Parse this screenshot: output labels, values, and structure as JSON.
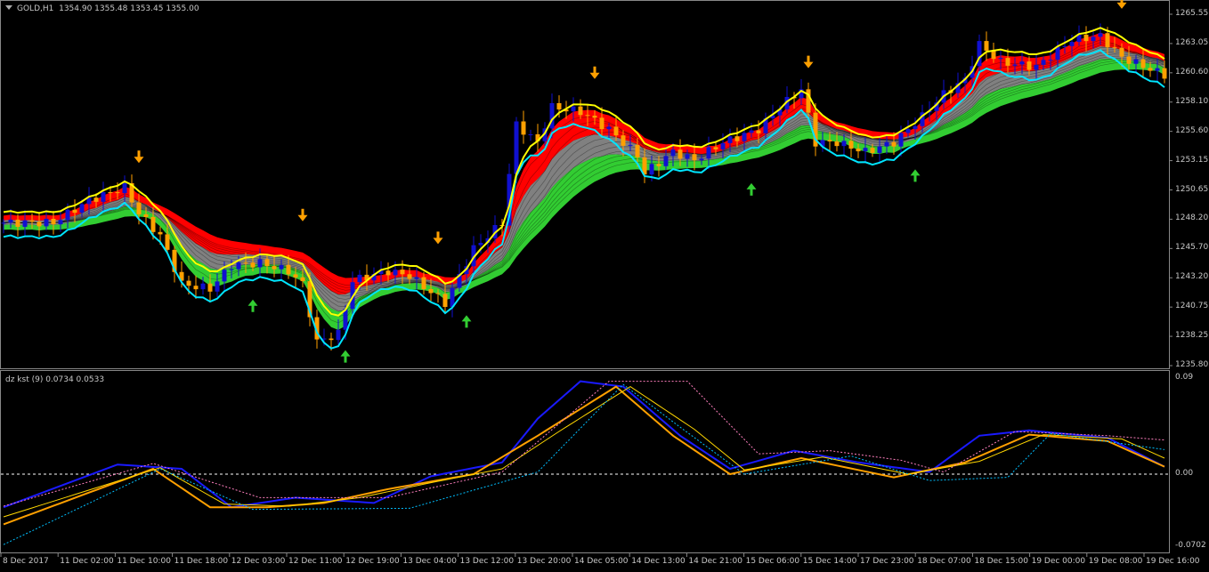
{
  "window": {
    "symbol": "GOLD,H1",
    "ohlc": "1354.90 1355.48 1353.45 1355.00"
  },
  "indicator": {
    "label": "dz kst (9) 0.0734 0.0533"
  },
  "chart_data": [
    {
      "type": "candlestick",
      "title": "GOLD,H1",
      "y_ticks": [
        "1265.55",
        "1263.05",
        "1260.60",
        "1258.10",
        "1255.60",
        "1253.15",
        "1250.65",
        "1248.20",
        "1245.70",
        "1243.20",
        "1240.75",
        "1238.25",
        "1235.80"
      ],
      "ylim": [
        1235.8,
        1265.55
      ],
      "x_ticks": [
        "8 Dec 2017",
        "11 Dec 02:00",
        "11 Dec 10:00",
        "11 Dec 18:00",
        "12 Dec 03:00",
        "12 Dec 11:00",
        "12 Dec 19:00",
        "13 Dec 04:00",
        "13 Dec 12:00",
        "13 Dec 20:00",
        "14 Dec 05:00",
        "14 Dec 13:00",
        "14 Dec 21:00",
        "15 Dec 06:00",
        "15 Dec 14:00",
        "17 Dec 23:00",
        "18 Dec 07:00",
        "18 Dec 15:00",
        "19 Dec 00:00",
        "19 Dec 08:00",
        "19 Dec 16:00"
      ],
      "close_keypoints_bar_price": [
        [
          0,
          1247.9
        ],
        [
          7,
          1247.9
        ],
        [
          12,
          1249.8
        ],
        [
          17,
          1250.9
        ],
        [
          19,
          1248.7
        ],
        [
          22,
          1246.8
        ],
        [
          25,
          1242.7
        ],
        [
          29,
          1242.3
        ],
        [
          32,
          1244.3
        ],
        [
          36,
          1244.5
        ],
        [
          40,
          1243.8
        ],
        [
          42,
          1242.7
        ],
        [
          44,
          1237.8
        ],
        [
          47,
          1238.5
        ],
        [
          49,
          1243.0
        ],
        [
          54,
          1243.8
        ],
        [
          57,
          1243.4
        ],
        [
          62,
          1241.1
        ],
        [
          66,
          1245.7
        ],
        [
          70,
          1247.9
        ],
        [
          72,
          1256.2
        ],
        [
          75,
          1254.7
        ],
        [
          77,
          1257.7
        ],
        [
          81,
          1257.3
        ],
        [
          85,
          1255.8
        ],
        [
          89,
          1253.6
        ],
        [
          90,
          1252.1
        ],
        [
          94,
          1253.9
        ],
        [
          97,
          1253.2
        ],
        [
          101,
          1254.7
        ],
        [
          106,
          1255.8
        ],
        [
          109,
          1257.7
        ],
        [
          112,
          1259.2
        ],
        [
          114,
          1254.7
        ],
        [
          117,
          1254.7
        ],
        [
          121,
          1253.9
        ],
        [
          125,
          1254.7
        ],
        [
          129,
          1256.9
        ],
        [
          132,
          1258.8
        ],
        [
          135,
          1260.0
        ],
        [
          137,
          1263.0
        ],
        [
          140,
          1261.5
        ],
        [
          145,
          1261.1
        ],
        [
          150,
          1263.4
        ],
        [
          154,
          1263.7
        ],
        [
          157,
          1261.9
        ],
        [
          163,
          1260.4
        ]
      ],
      "sell_arrows_bar": [
        19,
        42,
        61,
        83,
        113,
        157
      ],
      "buy_arrows_bar": [
        35,
        48,
        65,
        105,
        128
      ],
      "colors": {
        "bull": "#1010d0",
        "bear": "#ffa000",
        "ribbon_top": "#ff0000",
        "ribbon_mid": "#808080",
        "ribbon_bottom": "#32cd32",
        "fast_line": "#00e5ff",
        "slow_line": "#ffff00",
        "sell_arrow": "#ffa000",
        "buy_arrow": "#32cd32"
      }
    },
    {
      "type": "line",
      "title": "dz kst (9) 0.0734 0.0533",
      "ylim": [
        -0.0702,
        0.09
      ],
      "y_ticks": [
        "0.09",
        "0.00",
        "-0.0702"
      ],
      "zero_line": true,
      "series": [
        {
          "color": "#1a1aff",
          "style": "solid",
          "points": [
            [
              0,
              -0.031
            ],
            [
              16,
              0.009
            ],
            [
              25,
              0.005
            ],
            [
              32,
              -0.031
            ],
            [
              41,
              -0.022
            ],
            [
              52,
              -0.027
            ],
            [
              60,
              -0.002
            ],
            [
              70,
              0.011
            ],
            [
              75,
              0.052
            ],
            [
              81,
              0.087
            ],
            [
              87,
              0.082
            ],
            [
              95,
              0.036
            ],
            [
              102,
              0.005
            ],
            [
              111,
              0.022
            ],
            [
              120,
              0.011
            ],
            [
              130,
              0.002
            ],
            [
              137,
              0.036
            ],
            [
              144,
              0.041
            ],
            [
              155,
              0.034
            ],
            [
              163,
              0.007
            ]
          ]
        },
        {
          "color": "#ffa000",
          "style": "solid",
          "points": [
            [
              0,
              -0.047
            ],
            [
              21,
              0.005
            ],
            [
              29,
              -0.031
            ],
            [
              37,
              -0.031
            ],
            [
              45,
              -0.027
            ],
            [
              54,
              -0.014
            ],
            [
              66,
              0.0
            ],
            [
              75,
              0.036
            ],
            [
              86,
              0.082
            ],
            [
              94,
              0.036
            ],
            [
              102,
              0.0
            ],
            [
              112,
              0.015
            ],
            [
              125,
              -0.003
            ],
            [
              135,
              0.011
            ],
            [
              144,
              0.037
            ],
            [
              155,
              0.031
            ],
            [
              163,
              0.007
            ]
          ]
        },
        {
          "color": "#ffd700",
          "style": "thin",
          "points": [
            [
              0,
              -0.04
            ],
            [
              22,
              0.006
            ],
            [
              31,
              -0.028
            ],
            [
              40,
              -0.03
            ],
            [
              50,
              -0.022
            ],
            [
              60,
              -0.008
            ],
            [
              70,
              0.005
            ],
            [
              78,
              0.04
            ],
            [
              88,
              0.082
            ],
            [
              97,
              0.042
            ],
            [
              104,
              0.004
            ],
            [
              115,
              0.016
            ],
            [
              127,
              0.0
            ],
            [
              137,
              0.012
            ],
            [
              146,
              0.037
            ],
            [
              157,
              0.033
            ],
            [
              163,
              0.015
            ]
          ]
        },
        {
          "color": "#ff7fbf",
          "style": "dashed",
          "points": [
            [
              0,
              -0.03
            ],
            [
              21,
              0.01
            ],
            [
              36,
              -0.022
            ],
            [
              54,
              -0.022
            ],
            [
              70,
              0.002
            ],
            [
              85,
              0.087
            ],
            [
              96,
              0.087
            ],
            [
              106,
              0.019
            ],
            [
              116,
              0.022
            ],
            [
              126,
              0.013
            ],
            [
              132,
              0.002
            ],
            [
              142,
              0.04
            ],
            [
              155,
              0.036
            ],
            [
              163,
              0.032
            ]
          ]
        },
        {
          "color": "#00bfff",
          "style": "dashed",
          "points": [
            [
              0,
              -0.066
            ],
            [
              22,
              0.005
            ],
            [
              35,
              -0.033
            ],
            [
              57,
              -0.032
            ],
            [
              75,
              0.002
            ],
            [
              87,
              0.084
            ],
            [
              95,
              0.044
            ],
            [
              104,
              0.0
            ],
            [
              119,
              0.017
            ],
            [
              130,
              -0.006
            ],
            [
              141,
              -0.003
            ],
            [
              147,
              0.038
            ],
            [
              163,
              0.023
            ]
          ]
        }
      ]
    }
  ]
}
